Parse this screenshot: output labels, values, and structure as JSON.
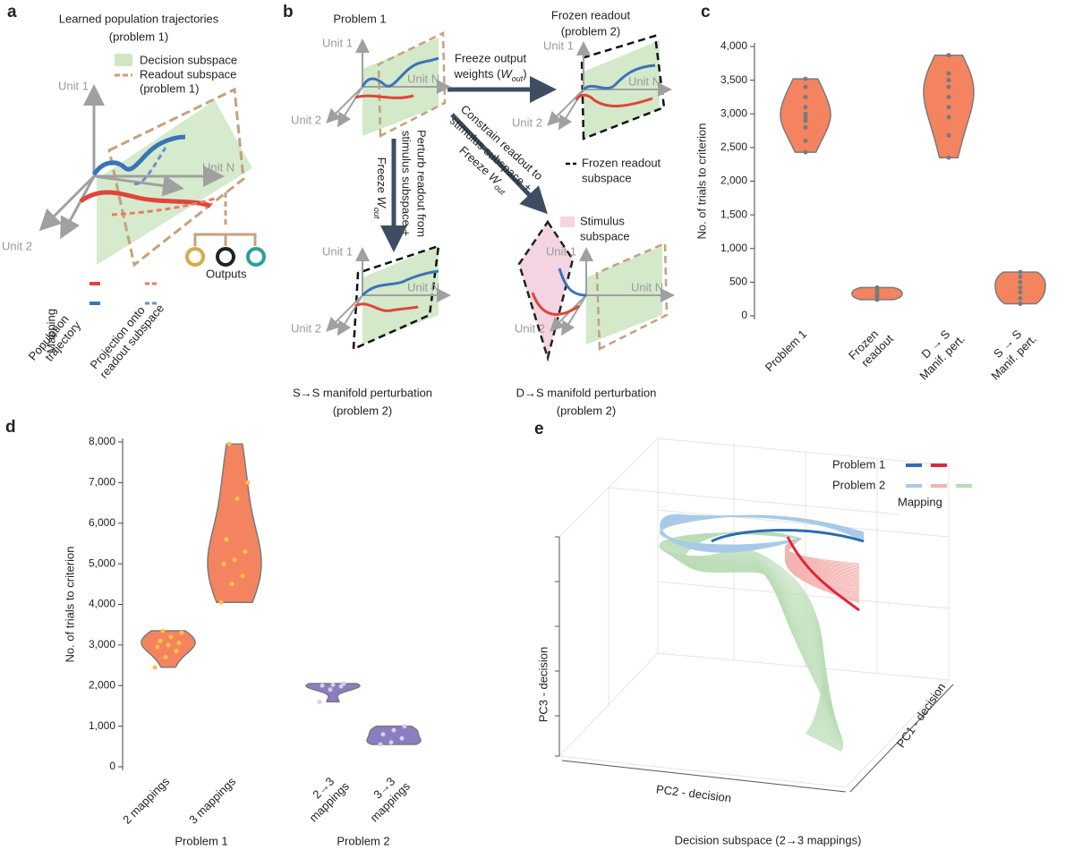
{
  "panel_a": {
    "label": "a",
    "title": [
      "Learned population trajectories",
      "(problem 1)"
    ],
    "legend_decision": "Decision subspace",
    "legend_readout": [
      "Readout subspace",
      "(problem 1)"
    ],
    "unit1": "Unit 1",
    "unit2": "Unit 2",
    "unitN": "Unit N",
    "outputs": "Outputs",
    "mapping": "Mapping",
    "population": [
      "Population",
      "trajectory"
    ],
    "projection": [
      "Projection onto",
      "readout subspace"
    ]
  },
  "panel_b": {
    "label": "b",
    "problem1": "Problem 1",
    "frozen_title": [
      "Frozen readout",
      "(problem 2)"
    ],
    "freeze_output": [
      "Freeze output",
      "weights ("
    ],
    "w_out_1": [
      "W",
      "out",
      ")"
    ],
    "freeze_w_1": [
      "Freeze ",
      "W",
      "out"
    ],
    "perturb": [
      "Perturb readout from",
      "stimulus subspace +"
    ],
    "constrain": [
      "Constrain readout to",
      "stimulus subspace +"
    ],
    "freeze_w_2": [
      "Freeze ",
      "W",
      "out"
    ],
    "frozen_subspace": [
      "Frozen readout",
      "subspace"
    ],
    "stimulus_subspace": [
      "Stimulus",
      "subspace"
    ],
    "ss_title": [
      "S→S manifold perturbation",
      "(problem 2)"
    ],
    "ds_title": [
      "D→S manifold perturbation",
      "(problem 2)"
    ],
    "minis": [
      {
        "unit1": "Unit 1",
        "unit2": "Unit 2",
        "unitN": "Unit N"
      },
      {
        "unit1": "Unit 1",
        "unit2": "Unit 2",
        "unitN": "Unit N"
      },
      {
        "unit1": "Unit 1",
        "unit2": "Unit 2",
        "unitN": "Unit N"
      },
      {
        "unit1": "Unit 1",
        "unit2": "Unit 2",
        "unitN": "Unit N"
      }
    ]
  },
  "panel_e": {
    "label": "e",
    "problem1": "Problem 1",
    "problem2": "Problem 2",
    "mapping": "Mapping",
    "pc1": "PC1 - decision",
    "pc2": "PC2 - decision",
    "pc3": "PC3 - decision",
    "caption": "Decision subspace (2→3 mappings)"
  },
  "chart_data": [
    {
      "type": "violin",
      "panel_label": "c",
      "ylabel": "No. of trials to criterion",
      "categories": [
        "Problem 1",
        "Frozen\nreadout",
        "D → S\nManif. pert.",
        "S → S\nManif. pert."
      ],
      "values": [
        [
          2430,
          2600,
          2800,
          2900,
          2950,
          3000,
          3100,
          3250,
          3400,
          3520
        ],
        [
          240,
          270,
          300,
          330,
          360,
          390,
          420
        ],
        [
          2350,
          2680,
          2950,
          3100,
          3250,
          3400,
          3500,
          3600,
          3870
        ],
        [
          180,
          260,
          350,
          420,
          500,
          580,
          650
        ]
      ],
      "colors": [
        "#f4845f",
        "#f4845f",
        "#f4845f",
        "#f4845f"
      ],
      "point_colors": [
        "#7a7a7a",
        "#7a7a7a",
        "#7a7a7a",
        "#7a7a7a"
      ],
      "edge_color": "#7a7a7a",
      "ylim": [
        0,
        4000
      ],
      "yticks": [
        0,
        {
          "value": 500,
          "label": "500"
        },
        {
          "value": 1000,
          "label": "1,000"
        },
        {
          "value": 1500,
          "label": "1,500"
        },
        {
          "value": 2000,
          "label": "2,000"
        },
        {
          "value": 2500,
          "label": "2,500"
        },
        {
          "value": 3000,
          "label": "3,000"
        },
        {
          "value": 3500,
          "label": "3,500"
        },
        {
          "value": 4000,
          "label": "4,000"
        }
      ]
    },
    {
      "type": "violin",
      "panel_label": "d",
      "ylabel": "No. of trials to criterion",
      "categories": [
        "2 mappings",
        "3 mappings",
        "2→3\nmappings",
        "3→3\nmappings"
      ],
      "group_labels": [
        "Problem 1",
        "Problem 2"
      ],
      "values": [
        [
          2450,
          2700,
          2850,
          2950,
          3000,
          3050,
          3100,
          3200,
          3300,
          3350
        ],
        [
          4050,
          4500,
          4700,
          5000,
          5100,
          5300,
          5600,
          6600,
          7000,
          7950
        ],
        [
          1600,
          1900,
          1980,
          2000,
          2020,
          2050
        ],
        [
          550,
          600,
          700,
          800,
          900,
          1000
        ]
      ],
      "colors": [
        "#f4845f",
        "#f4845f",
        "#8c7dc0",
        "#8c7dc0"
      ],
      "point_colors": [
        "#f5c542",
        "#f5c542",
        "#d9ccf2",
        "#d9ccf2"
      ],
      "edge_color": "#7a7a7a",
      "ylim": [
        0,
        8000
      ],
      "yticks": [
        0,
        {
          "value": 1000,
          "label": "1,000"
        },
        {
          "value": 2000,
          "label": "2,000"
        },
        {
          "value": 3000,
          "label": "3,000"
        },
        {
          "value": 4000,
          "label": "4,000"
        },
        {
          "value": 5000,
          "label": "5,000"
        },
        {
          "value": 6000,
          "label": "6,000"
        },
        {
          "value": 7000,
          "label": "7,000"
        },
        {
          "value": 8000,
          "label": "8,000"
        }
      ]
    }
  ]
}
